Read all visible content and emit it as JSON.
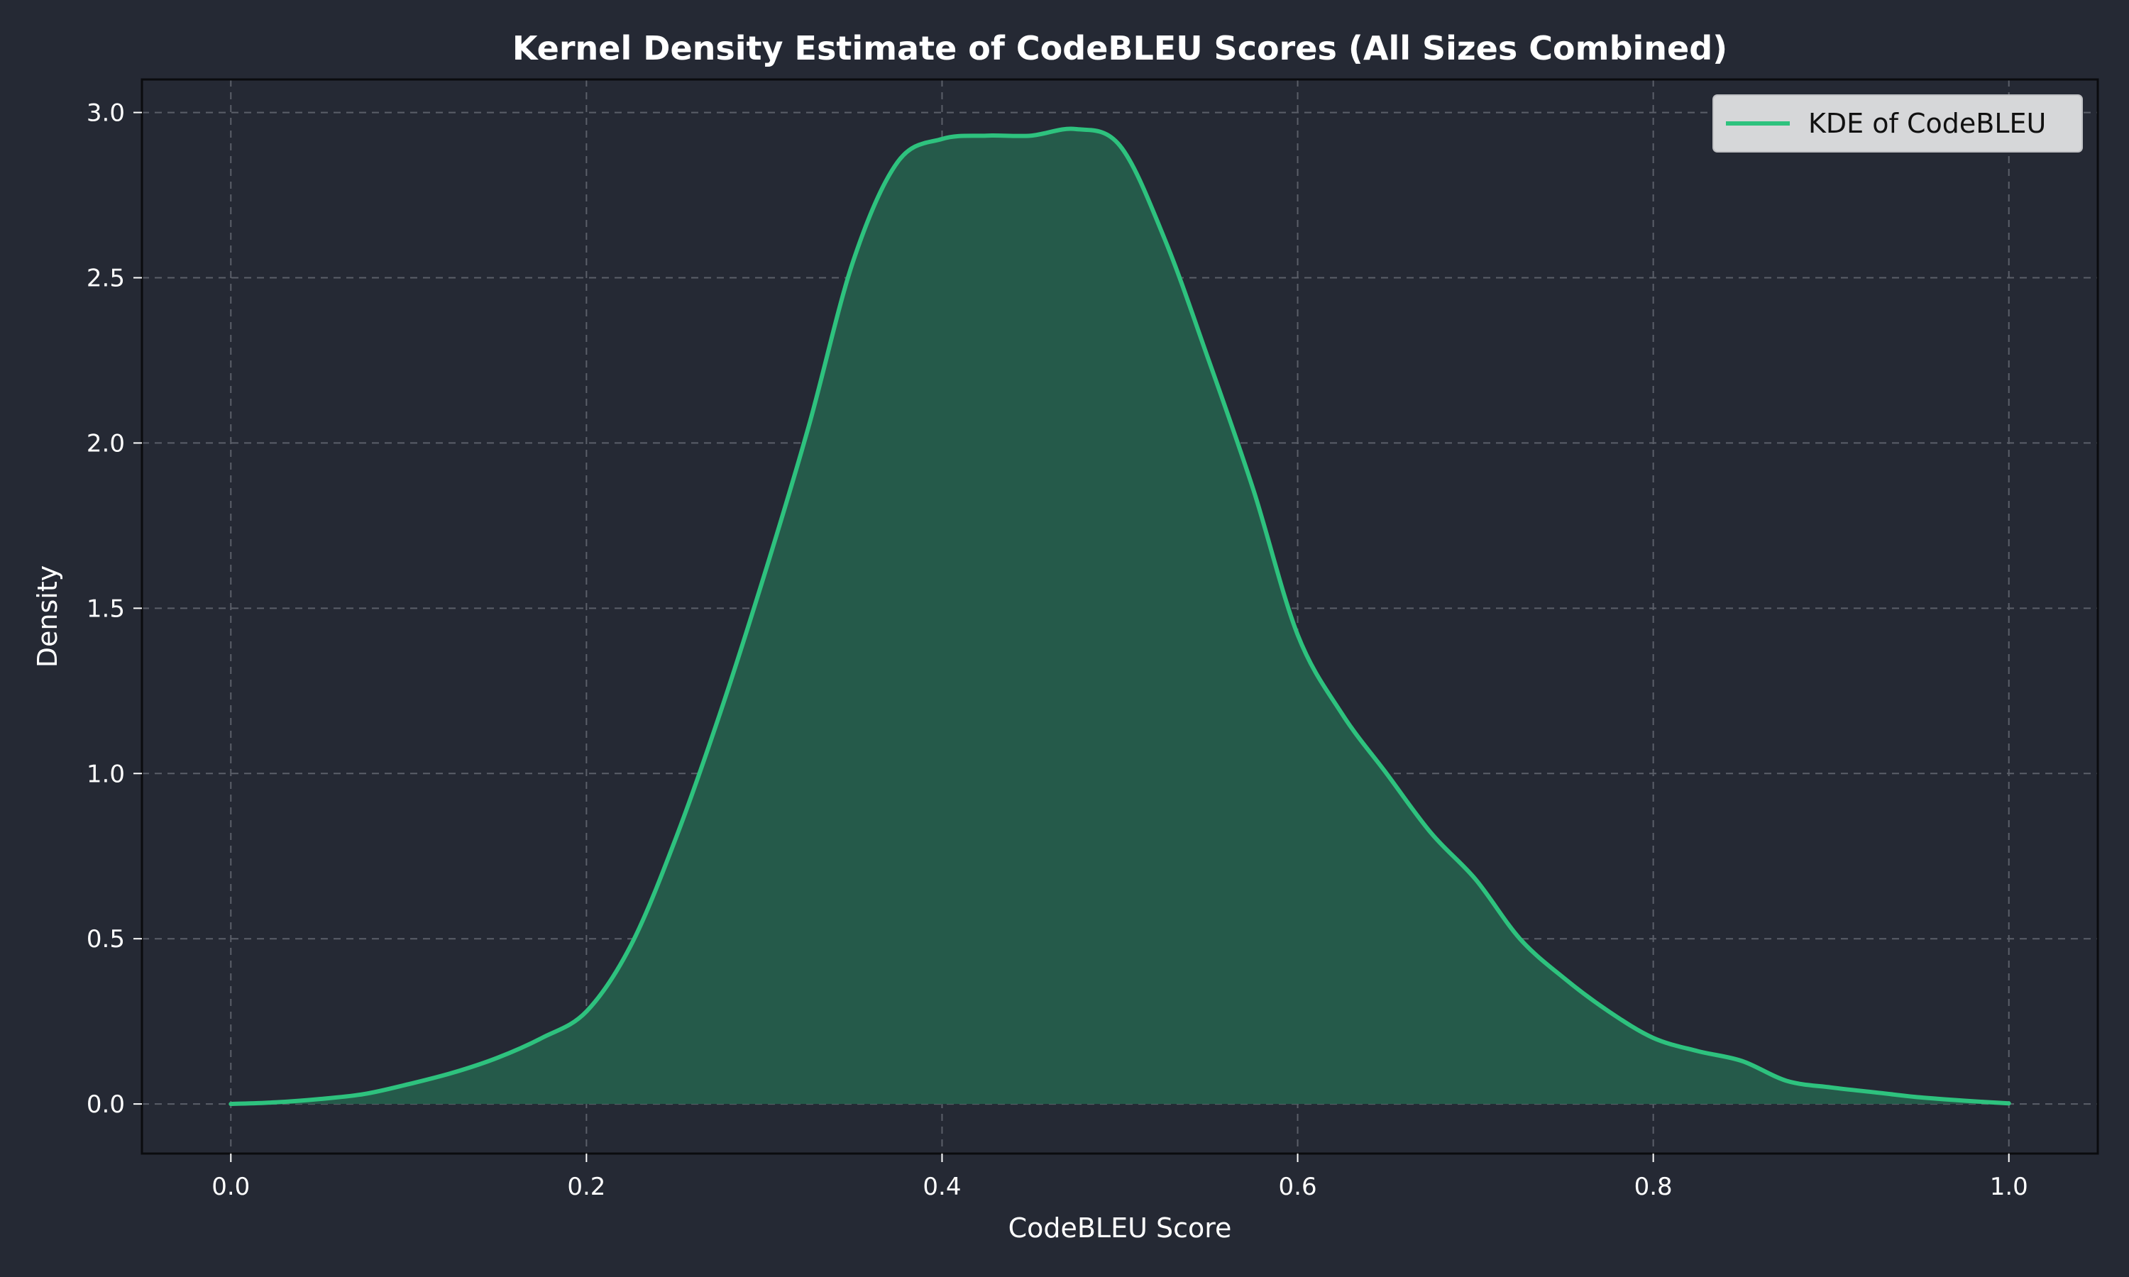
{
  "chart_data": {
    "type": "area",
    "title": "Kernel Density Estimate of CodeBLEU Scores (All Sizes Combined)",
    "xlabel": "CodeBLEU Score",
    "ylabel": "Density",
    "xlim": [
      -0.05,
      1.05
    ],
    "ylim": [
      -0.15,
      3.1
    ],
    "xticks": [
      0.0,
      0.2,
      0.4,
      0.6,
      0.8,
      1.0
    ],
    "xtick_labels": [
      "0.0",
      "0.2",
      "0.4",
      "0.6",
      "0.8",
      "1.0"
    ],
    "yticks": [
      0.0,
      0.5,
      1.0,
      1.5,
      2.0,
      2.5,
      3.0
    ],
    "ytick_labels": [
      "0.0",
      "0.5",
      "1.0",
      "1.5",
      "2.0",
      "2.5",
      "3.0"
    ],
    "grid": true,
    "legend": {
      "placement": "top-right",
      "entries": [
        "KDE of CodeBLEU"
      ]
    },
    "colors": {
      "line": "#2ec27e",
      "fill": "#255a4a",
      "background": "#252934",
      "grid": "#5b5f69",
      "legend_bg": "#d6d7d9"
    },
    "series": [
      {
        "name": "KDE of CodeBLEU",
        "x": [
          0.0,
          0.025,
          0.05,
          0.075,
          0.1,
          0.125,
          0.15,
          0.175,
          0.2,
          0.225,
          0.25,
          0.275,
          0.3,
          0.325,
          0.35,
          0.375,
          0.4,
          0.425,
          0.45,
          0.475,
          0.5,
          0.525,
          0.55,
          0.575,
          0.6,
          0.625,
          0.65,
          0.675,
          0.7,
          0.725,
          0.75,
          0.775,
          0.8,
          0.825,
          0.85,
          0.875,
          0.9,
          0.925,
          0.95,
          0.975,
          1.0
        ],
        "y": [
          0.0,
          0.005,
          0.015,
          0.03,
          0.06,
          0.095,
          0.14,
          0.2,
          0.28,
          0.48,
          0.8,
          1.18,
          1.6,
          2.05,
          2.55,
          2.85,
          2.92,
          2.93,
          2.93,
          2.95,
          2.9,
          2.62,
          2.25,
          1.86,
          1.42,
          1.18,
          1.0,
          0.82,
          0.68,
          0.5,
          0.38,
          0.28,
          0.2,
          0.16,
          0.13,
          0.07,
          0.05,
          0.035,
          0.02,
          0.01,
          0.002
        ]
      }
    ]
  }
}
